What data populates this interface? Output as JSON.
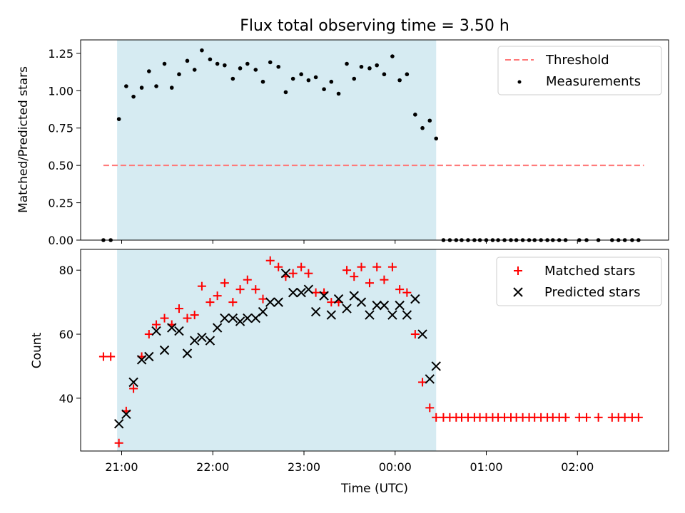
{
  "chart_data": [
    {
      "type": "scatter",
      "title": "Flux total observing time = 3.50 h",
      "xlabel": "",
      "ylabel": "Matched/Predicted stars",
      "xlim": [
        20.55,
        3.0
      ],
      "ylim": [
        0,
        1.34
      ],
      "yticks": [
        "0.00",
        "0.25",
        "0.50",
        "0.75",
        "1.00",
        "1.25"
      ],
      "ytick_values": [
        0,
        0.25,
        0.5,
        0.75,
        1.0,
        1.25
      ],
      "observing_window": [
        20.95,
        24.45
      ],
      "threshold": {
        "name": "Threshold",
        "value": 0.5,
        "x_range": [
          20.8,
          26.73
        ],
        "color": "#ff7777"
      },
      "series": [
        {
          "name": "Measurements",
          "color": "#000000",
          "x": [
            20.8,
            20.88,
            20.97,
            21.05,
            21.13,
            21.22,
            21.3,
            21.38,
            21.47,
            21.55,
            21.63,
            21.72,
            21.8,
            21.88,
            21.97,
            22.05,
            22.13,
            22.22,
            22.3,
            22.38,
            22.47,
            22.55,
            22.63,
            22.72,
            22.8,
            22.88,
            22.97,
            23.05,
            23.13,
            23.22,
            23.3,
            23.38,
            23.47,
            23.55,
            23.63,
            23.72,
            23.8,
            23.88,
            23.97,
            24.05,
            24.13,
            24.22,
            24.3,
            24.38,
            24.45,
            24.53,
            24.6,
            24.67,
            24.73,
            24.8,
            24.87,
            24.93,
            25.0,
            25.07,
            25.13,
            25.2,
            25.27,
            25.33,
            25.4,
            25.47,
            25.53,
            25.6,
            25.67,
            25.73,
            25.8,
            25.87,
            26.02,
            26.1,
            26.23,
            26.38,
            26.45,
            26.52,
            26.6,
            26.67
          ],
          "values": [
            0.0,
            0.0,
            0.81,
            1.03,
            0.96,
            1.02,
            1.13,
            1.03,
            1.18,
            1.02,
            1.11,
            1.2,
            1.14,
            1.27,
            1.21,
            1.18,
            1.17,
            1.08,
            1.15,
            1.18,
            1.14,
            1.06,
            1.19,
            1.16,
            0.99,
            1.08,
            1.11,
            1.07,
            1.09,
            1.01,
            1.06,
            0.98,
            1.18,
            1.08,
            1.16,
            1.15,
            1.17,
            1.11,
            1.23,
            1.07,
            1.11,
            0.84,
            0.75,
            0.8,
            0.68,
            0.0,
            0.0,
            0.0,
            0.0,
            0.0,
            0.0,
            0.0,
            0.0,
            0.0,
            0.0,
            0.0,
            0.0,
            0.0,
            0.0,
            0.0,
            0.0,
            0.0,
            0.0,
            0.0,
            0.0,
            0.0,
            0.0,
            0.0,
            0.0,
            0.0,
            0.0,
            0.0,
            0.0,
            0.0
          ]
        }
      ],
      "legend": {
        "position": "top-right",
        "entries": [
          "Threshold",
          "Measurements"
        ]
      }
    },
    {
      "type": "scatter",
      "title": "",
      "xlabel": "Time (UTC)",
      "ylabel": "Count",
      "xlim": [
        20.55,
        3.0
      ],
      "ylim": [
        23.5,
        86.5
      ],
      "yticks": [
        "40",
        "60",
        "80"
      ],
      "ytick_values": [
        40,
        60,
        80
      ],
      "xticks": [
        "21:00",
        "22:00",
        "23:00",
        "00:00",
        "01:00",
        "02:00"
      ],
      "xtick_values": [
        21,
        22,
        23,
        24,
        25,
        26
      ],
      "observing_window": [
        20.95,
        24.45
      ],
      "series": [
        {
          "name": "Matched stars",
          "marker": "plus",
          "color": "#ff0000",
          "x": [
            20.8,
            20.88,
            20.97,
            21.05,
            21.13,
            21.22,
            21.3,
            21.38,
            21.47,
            21.55,
            21.63,
            21.72,
            21.8,
            21.88,
            21.97,
            22.05,
            22.13,
            22.22,
            22.3,
            22.38,
            22.47,
            22.55,
            22.63,
            22.72,
            22.8,
            22.88,
            22.97,
            23.05,
            23.13,
            23.22,
            23.3,
            23.38,
            23.47,
            23.55,
            23.63,
            23.72,
            23.8,
            23.88,
            23.97,
            24.05,
            24.13,
            24.22,
            24.3,
            24.38,
            24.45,
            24.53,
            24.6,
            24.67,
            24.73,
            24.8,
            24.87,
            24.93,
            25.0,
            25.07,
            25.13,
            25.2,
            25.27,
            25.33,
            25.4,
            25.47,
            25.53,
            25.6,
            25.67,
            25.73,
            25.8,
            25.87,
            26.02,
            26.1,
            26.23,
            26.38,
            26.45,
            26.52,
            26.6,
            26.67
          ],
          "values": [
            53,
            53,
            26,
            36,
            43,
            53,
            60,
            63,
            65,
            63,
            68,
            65,
            66,
            75,
            70,
            72,
            76,
            70,
            74,
            77,
            74,
            71,
            83,
            81,
            78,
            79,
            81,
            79,
            73,
            73,
            70,
            70,
            80,
            78,
            81,
            76,
            81,
            77,
            81,
            74,
            73,
            60,
            45,
            37,
            34,
            34,
            34,
            34,
            34,
            34,
            34,
            34,
            34,
            34,
            34,
            34,
            34,
            34,
            34,
            34,
            34,
            34,
            34,
            34,
            34,
            34,
            34,
            34,
            34,
            34,
            34,
            34,
            34,
            34
          ]
        },
        {
          "name": "Predicted stars",
          "marker": "x",
          "color": "#000000",
          "x": [
            20.97,
            21.05,
            21.13,
            21.22,
            21.3,
            21.38,
            21.47,
            21.55,
            21.63,
            21.72,
            21.8,
            21.88,
            21.97,
            22.05,
            22.13,
            22.22,
            22.3,
            22.38,
            22.47,
            22.55,
            22.63,
            22.72,
            22.8,
            22.88,
            22.97,
            23.05,
            23.13,
            23.22,
            23.3,
            23.38,
            23.47,
            23.55,
            23.63,
            23.72,
            23.8,
            23.88,
            23.97,
            24.05,
            24.13,
            24.22,
            24.3,
            24.38,
            24.45
          ],
          "values": [
            32,
            35,
            45,
            52,
            53,
            61,
            55,
            62,
            61,
            54,
            58,
            59,
            58,
            62,
            65,
            65,
            64,
            65,
            65,
            67,
            70,
            70,
            79,
            73,
            73,
            74,
            67,
            72,
            66,
            71,
            68,
            72,
            70,
            66,
            69,
            69,
            66,
            69,
            66,
            71,
            60,
            46,
            50
          ]
        }
      ],
      "legend": {
        "position": "top-right",
        "entries": [
          "Matched stars",
          "Predicted stars"
        ]
      }
    }
  ]
}
